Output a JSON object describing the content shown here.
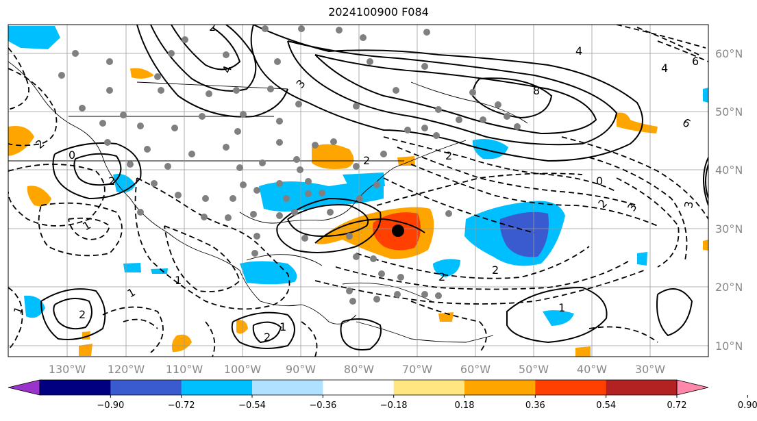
{
  "title": "2024100900 F084",
  "lon_labels": [
    "130°W",
    "120°W",
    "110°W",
    "100°W",
    "90°W",
    "80°W",
    "70°W",
    "60°W",
    "50°W",
    "40°W",
    "30°W"
  ],
  "lat_labels": [
    "60°N",
    "50°N",
    "40°N",
    "30°N",
    "20°N",
    "10°N"
  ],
  "colorbar": {
    "ticks": [
      "−0.90",
      "−0.72",
      "−0.54",
      "−0.36",
      "−0.18",
      "0.18",
      "0.36",
      "0.54",
      "0.72",
      "0.90"
    ],
    "colors": [
      "#9933cc",
      "#000080",
      "#3a5bd0",
      "#00bfff",
      "#b0e2ff",
      "#ffffff",
      "#ffe680",
      "#ffa500",
      "#ff4000",
      "#b22222",
      "#ff88aa"
    ],
    "under_color": "#9933cc",
    "over_color": "#ff88aa"
  },
  "contour_labels": [
    "2",
    "4",
    "3",
    "8",
    "6",
    "4",
    "0",
    "2",
    "2",
    "2",
    "3",
    "2",
    "1",
    "1",
    "1",
    "2",
    "2",
    "2",
    "1",
    "2",
    "6",
    "0",
    "1",
    "1",
    "2",
    "3",
    "4"
  ],
  "center_marker": "black-dot"
}
